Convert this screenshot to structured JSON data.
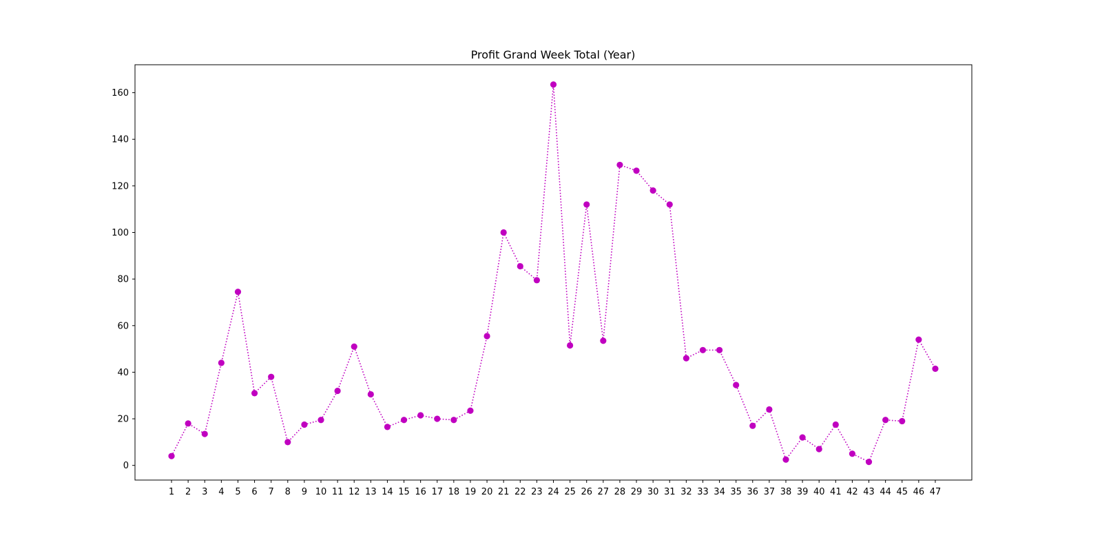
{
  "chart_data": {
    "type": "line",
    "title": "Profit Grand Week Total (Year)",
    "xlabel": "",
    "ylabel": "",
    "x": [
      1,
      2,
      3,
      4,
      5,
      6,
      7,
      8,
      9,
      10,
      11,
      12,
      13,
      14,
      15,
      16,
      17,
      18,
      19,
      20,
      21,
      22,
      23,
      24,
      25,
      26,
      27,
      28,
      29,
      30,
      31,
      32,
      33,
      34,
      35,
      36,
      37,
      38,
      39,
      40,
      41,
      42,
      43,
      44,
      45,
      46,
      47
    ],
    "series": [
      {
        "values": [
          4,
          18,
          13.5,
          44,
          74.5,
          31,
          38,
          10,
          17.5,
          19.5,
          32,
          51,
          30.5,
          16.5,
          19.5,
          21.5,
          20,
          19.5,
          23.5,
          55.5,
          100,
          85.5,
          79.5,
          163.5,
          51.5,
          112,
          53.5,
          129,
          126.5,
          118,
          112,
          46,
          49.5,
          49.5,
          34.5,
          17,
          24,
          2.5,
          12,
          7,
          17.5,
          5,
          1.5,
          19.5,
          19,
          54,
          41.5
        ]
      }
    ],
    "xlim": [
      -1.2,
      49.2
    ],
    "ylim": [
      -6.3,
      172
    ],
    "y_ticks": [
      0,
      20,
      40,
      60,
      80,
      100,
      120,
      140,
      160
    ],
    "grid": false,
    "style": {
      "color": "#c000c0",
      "line": "dotted",
      "marker": "circle"
    }
  }
}
